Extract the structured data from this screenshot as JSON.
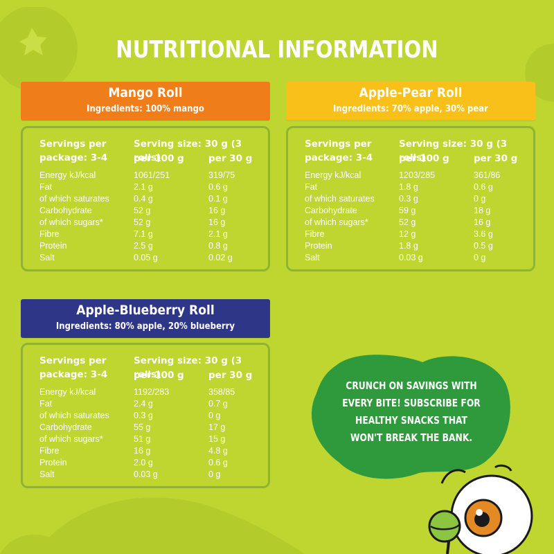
{
  "title": "NUTRITIONAL INFORMATION",
  "colors": {
    "background": "#bed62f",
    "mango": "#ef7d1a",
    "apple_pear": "#f9c01a",
    "apple_blueberry": "#2e3688",
    "panel_border": "#8fb332",
    "bubble": "#2e9a3c"
  },
  "headers": {
    "servings_line1": "Servings per",
    "servings_line2": "package: 3-4",
    "serving_size": "Serving size: 30 g (3 rolls)",
    "per100": "per 100 g",
    "per30": "per 30 g"
  },
  "products": [
    {
      "name": "Mango Roll",
      "ingredients": "Ingredients: 100% mango",
      "rows": [
        {
          "n": "Energy kJ/kcal",
          "a": "1061/251",
          "b": "319/75"
        },
        {
          "n": "Fat",
          "a": "2.1 g",
          "b": "0.6 g"
        },
        {
          "n": "of which saturates",
          "a": "0.4 g",
          "b": "0.1 g"
        },
        {
          "n": "Carbohydrate",
          "a": "52 g",
          "b": "16 g"
        },
        {
          "n": "of which sugars*",
          "a": "52 g",
          "b": "16 g"
        },
        {
          "n": "Fibre",
          "a": "7.1 g",
          "b": "2.1 g"
        },
        {
          "n": "Protein",
          "a": "2.5 g",
          "b": "0.8 g"
        },
        {
          "n": "Salt",
          "a": "0.05 g",
          "b": "0.02 g"
        }
      ]
    },
    {
      "name": "Apple-Pear Roll",
      "ingredients": "Ingredients: 70% apple, 30% pear",
      "rows": [
        {
          "n": "Energy kJ/kcal",
          "a": "1203/285",
          "b": "361/86"
        },
        {
          "n": "Fat",
          "a": "1.8 g",
          "b": "0.6 g"
        },
        {
          "n": "of which saturates",
          "a": "0.3 g",
          "b": "0 g"
        },
        {
          "n": "Carbohydrate",
          "a": "59 g",
          "b": "18 g"
        },
        {
          "n": "of which sugars*",
          "a": "52 g",
          "b": "16 g"
        },
        {
          "n": "Fibre",
          "a": "12 g",
          "b": "3.6 g"
        },
        {
          "n": "Protein",
          "a": "1.8 g",
          "b": "0.5 g"
        },
        {
          "n": "Salt",
          "a": "0.03 g",
          "b": "0 g"
        }
      ]
    },
    {
      "name": "Apple-Blueberry Roll",
      "ingredients": "Ingredients: 80% apple, 20% blueberry",
      "rows": [
        {
          "n": "Energy kJ/kcal",
          "a": "1192/283",
          "b": "358/85"
        },
        {
          "n": "Fat",
          "a": "2.4 g",
          "b": "0.7 g"
        },
        {
          "n": "of which saturates",
          "a": "0.3 g",
          "b": "0 g"
        },
        {
          "n": "Carbohydrate",
          "a": "55 g",
          "b": "17 g"
        },
        {
          "n": "of which sugars*",
          "a": "51 g",
          "b": "15 g"
        },
        {
          "n": "Fibre",
          "a": "16 g",
          "b": "4.8 g"
        },
        {
          "n": "Protein",
          "a": "2.0 g",
          "b": "0.6 g"
        },
        {
          "n": "Salt",
          "a": "0.03 g",
          "b": "0 g"
        }
      ]
    }
  ],
  "promo": "Crunch on savings with every bite! Subscribe for healthy snacks that won't break the bank.",
  "icons": [
    "blueberry-icon",
    "leaf-icon",
    "mascot-icon"
  ]
}
